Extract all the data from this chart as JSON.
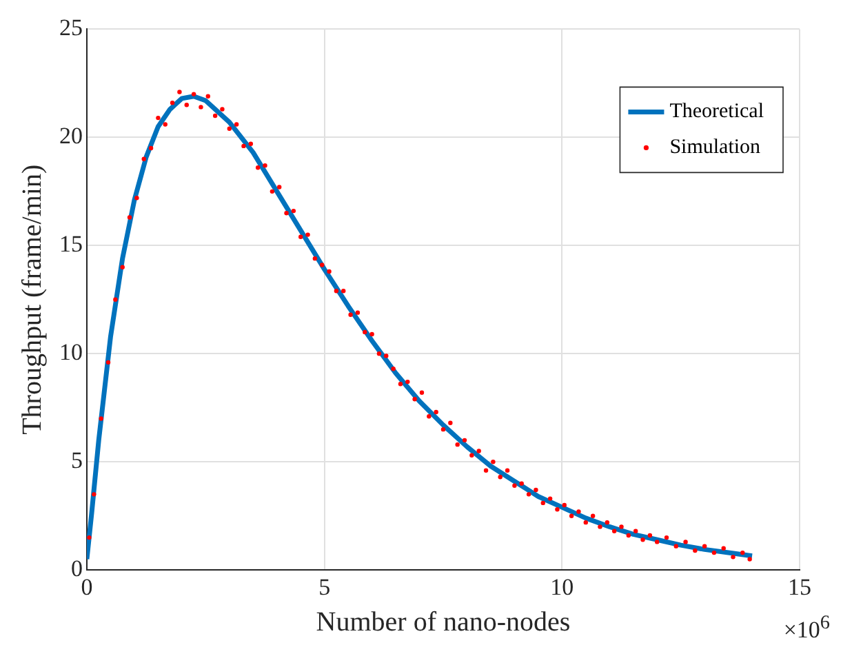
{
  "chart_data": {
    "type": "line",
    "xlabel": "Number of nano-nodes",
    "ylabel": "Throughput (frame/min)",
    "xlim": [
      0,
      15
    ],
    "xticks": [
      0,
      5,
      10,
      15
    ],
    "ylim": [
      0,
      25
    ],
    "yticks": [
      0,
      5,
      10,
      15,
      20,
      25
    ],
    "grid": true,
    "legend": "top right",
    "annotations": [
      "×10$^{6}$"
    ],
    "series": [
      {
        "name": "Theoretical",
        "type": "line",
        "color": "#0072bd",
        "x": [
          0,
          0.1,
          0.25,
          0.5,
          0.75,
          1.0,
          1.25,
          1.5,
          1.75,
          2.0,
          2.25,
          2.5,
          3.0,
          3.5,
          4.0,
          4.5,
          5.0,
          5.5,
          6.0,
          6.5,
          7.0,
          7.5,
          8.0,
          8.5,
          9.0,
          9.5,
          10.0,
          10.5,
          11.0,
          11.5,
          12.0,
          12.5,
          13.0,
          13.5,
          14.0
        ],
        "values": [
          0.5,
          2.6,
          6.0,
          10.8,
          14.4,
          17.1,
          19.1,
          20.5,
          21.3,
          21.8,
          21.9,
          21.7,
          20.7,
          19.3,
          17.5,
          15.7,
          13.9,
          12.2,
          10.6,
          9.1,
          7.8,
          6.7,
          5.7,
          4.8,
          4.1,
          3.4,
          2.9,
          2.4,
          2.0,
          1.65,
          1.4,
          1.15,
          0.95,
          0.8,
          0.65
        ]
      },
      {
        "name": "Simulation",
        "type": "scatter",
        "color": "#ff0000",
        "x": [
          0.05,
          0.15,
          0.3,
          0.45,
          0.6,
          0.75,
          0.9,
          1.05,
          1.2,
          1.35,
          1.5,
          1.65,
          1.8,
          1.95,
          2.1,
          2.25,
          2.4,
          2.55,
          2.7,
          2.85,
          3.0,
          3.15,
          3.3,
          3.45,
          3.6,
          3.75,
          3.9,
          4.05,
          4.2,
          4.35,
          4.5,
          4.65,
          4.8,
          4.95,
          5.1,
          5.25,
          5.4,
          5.55,
          5.7,
          5.85,
          6.0,
          6.15,
          6.3,
          6.45,
          6.6,
          6.75,
          6.9,
          7.05,
          7.2,
          7.35,
          7.5,
          7.65,
          7.8,
          7.95,
          8.1,
          8.25,
          8.4,
          8.55,
          8.7,
          8.85,
          9.0,
          9.15,
          9.3,
          9.45,
          9.6,
          9.75,
          9.9,
          10.05,
          10.2,
          10.35,
          10.5,
          10.65,
          10.8,
          10.95,
          11.1,
          11.25,
          11.4,
          11.55,
          11.7,
          11.85,
          12.0,
          12.2,
          12.4,
          12.6,
          12.8,
          13.0,
          13.2,
          13.4,
          13.6,
          13.8,
          13.95
        ],
        "values": [
          1.5,
          3.5,
          7.0,
          9.6,
          12.5,
          14.0,
          16.3,
          17.2,
          19.0,
          19.5,
          20.9,
          20.6,
          21.6,
          22.1,
          21.5,
          22.0,
          21.4,
          21.9,
          21.0,
          21.3,
          20.4,
          20.6,
          19.6,
          19.7,
          18.6,
          18.7,
          17.5,
          17.7,
          16.5,
          16.6,
          15.4,
          15.5,
          14.4,
          14.1,
          13.8,
          12.9,
          12.9,
          11.8,
          11.9,
          11.0,
          10.9,
          10.0,
          9.9,
          9.3,
          8.6,
          8.7,
          7.9,
          8.2,
          7.1,
          7.3,
          6.5,
          6.8,
          5.8,
          6.0,
          5.3,
          5.5,
          4.6,
          5.0,
          4.3,
          4.6,
          3.9,
          4.0,
          3.5,
          3.7,
          3.1,
          3.3,
          2.8,
          3.0,
          2.5,
          2.7,
          2.2,
          2.5,
          2.0,
          2.2,
          1.8,
          2.0,
          1.6,
          1.8,
          1.4,
          1.6,
          1.3,
          1.5,
          1.1,
          1.3,
          0.9,
          1.1,
          0.8,
          1.0,
          0.6,
          0.8,
          0.5
        ]
      }
    ]
  }
}
